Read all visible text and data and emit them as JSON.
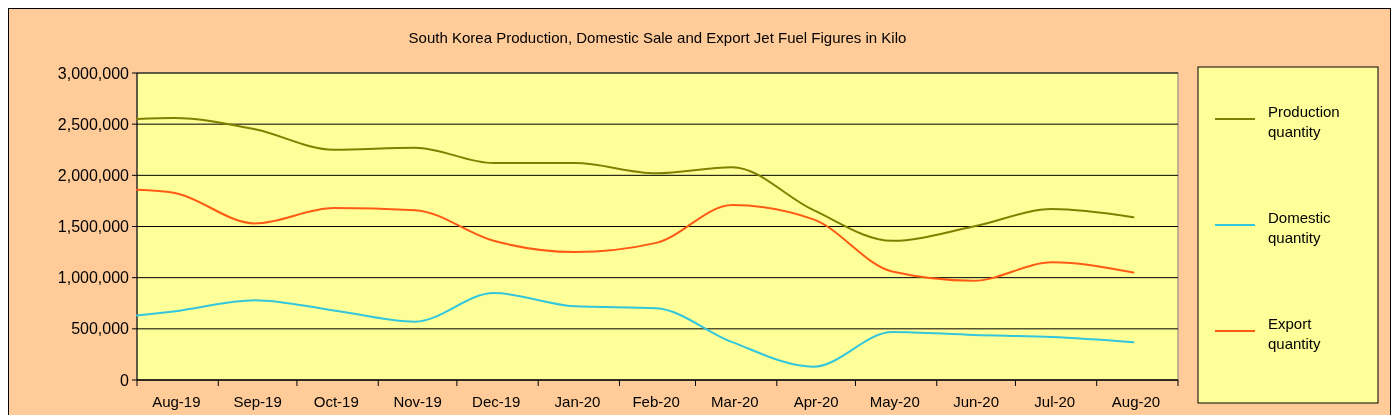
{
  "chart_data": {
    "type": "line",
    "title": "South Korea Production, Domestic Sale and Export  Jet Fuel  Figures in  Kilo",
    "x": [
      "2019-08-01",
      "2019-08-15",
      "2019-09-15",
      "2019-10-15",
      "2019-11-15",
      "2019-12-15",
      "2020-01-15",
      "2020-02-15",
      "2020-03-15",
      "2020-04-15",
      "2020-05-15",
      "2020-06-15",
      "2020-07-15",
      "2020-08-15"
    ],
    "series": [
      {
        "name": "Production quantity",
        "color": "#808000",
        "values": [
          2550000,
          2560000,
          2450000,
          2250000,
          2270000,
          2120000,
          2120000,
          2020000,
          2080000,
          1660000,
          1360000,
          1500000,
          1670000,
          1590000
        ]
      },
      {
        "name": "Domestic quantity",
        "color": "#33c6dc",
        "values": [
          630000,
          670000,
          780000,
          680000,
          570000,
          850000,
          720000,
          700000,
          370000,
          130000,
          470000,
          440000,
          420000,
          370000
        ]
      },
      {
        "name": "Export quantity",
        "color": "#ff5a14",
        "values": [
          1860000,
          1830000,
          1530000,
          1680000,
          1660000,
          1360000,
          1250000,
          1340000,
          1710000,
          1570000,
          1060000,
          970000,
          1150000,
          1050000
        ]
      }
    ],
    "xlim": [
      "2019-08-01",
      "2020-09-01"
    ],
    "xticks": [
      {
        "value": "2019-08-01",
        "label": null
      },
      {
        "value": "2019-08-16",
        "label": "Aug-19"
      },
      {
        "value": "2019-09-01",
        "label": null
      },
      {
        "value": "2019-09-16",
        "label": "Sep-19"
      },
      {
        "value": "2019-10-01",
        "label": null
      },
      {
        "value": "2019-10-16",
        "label": "Oct-19"
      },
      {
        "value": "2019-11-01",
        "label": null
      },
      {
        "value": "2019-11-16",
        "label": "Nov-19"
      },
      {
        "value": "2019-12-01",
        "label": null
      },
      {
        "value": "2019-12-16",
        "label": "Dec-19"
      },
      {
        "value": "2020-01-01",
        "label": null
      },
      {
        "value": "2020-01-16",
        "label": "Jan-20"
      },
      {
        "value": "2020-02-01",
        "label": null
      },
      {
        "value": "2020-02-15",
        "label": "Feb-20"
      },
      {
        "value": "2020-03-01",
        "label": null
      },
      {
        "value": "2020-03-16",
        "label": "Mar-20"
      },
      {
        "value": "2020-04-01",
        "label": null
      },
      {
        "value": "2020-04-16",
        "label": "Apr-20"
      },
      {
        "value": "2020-05-01",
        "label": null
      },
      {
        "value": "2020-05-16",
        "label": "May-20"
      },
      {
        "value": "2020-06-01",
        "label": null
      },
      {
        "value": "2020-06-16",
        "label": "Jun-20"
      },
      {
        "value": "2020-07-01",
        "label": null
      },
      {
        "value": "2020-07-16",
        "label": "Jul-20"
      },
      {
        "value": "2020-08-01",
        "label": null
      },
      {
        "value": "2020-08-16",
        "label": "Aug-20"
      },
      {
        "value": "2020-09-01",
        "label": null
      }
    ],
    "ylim": [
      0,
      3000000
    ],
    "yticks": [
      0,
      {
        "value": 500000,
        "label": "500,000"
      },
      {
        "value": 1000000,
        "label": "1,000,000"
      },
      {
        "value": 1500000,
        "label": "1,500,000"
      },
      {
        "value": 2000000,
        "label": "2,000,000"
      },
      {
        "value": 2500000,
        "label": "2,500,000"
      },
      {
        "value": 3000000,
        "label": "3,000,000"
      }
    ],
    "grid": "y",
    "legend": "right",
    "marker": "none",
    "line_style": "solid"
  }
}
